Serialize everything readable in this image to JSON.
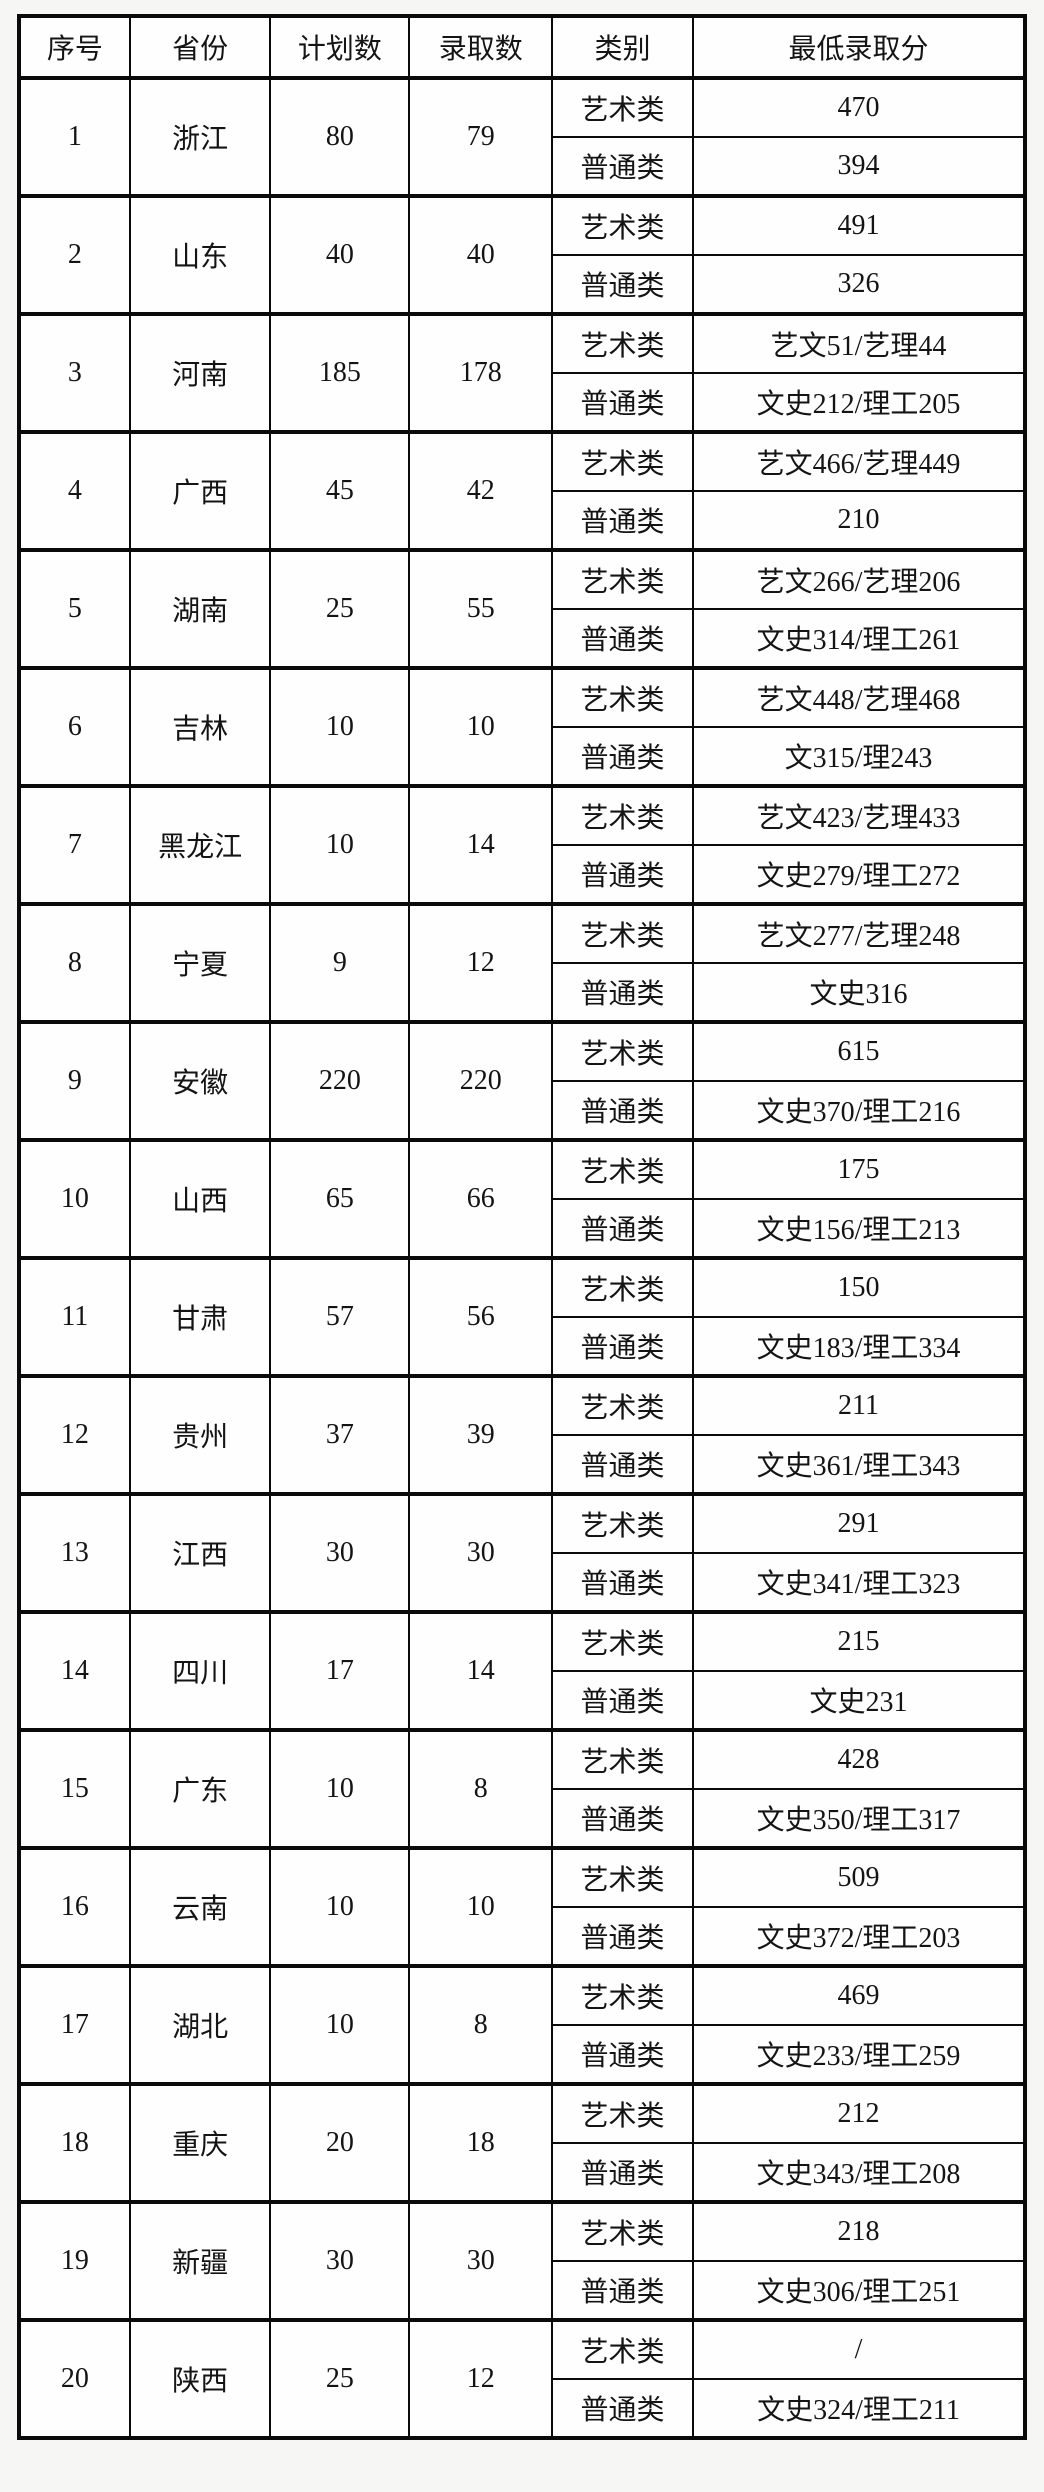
{
  "table": {
    "headers": {
      "serial": "序号",
      "province": "省份",
      "plan": "计划数",
      "admitted": "录取数",
      "category": "类别",
      "min_score": "最低录取分"
    },
    "category_labels": {
      "art": "艺术类",
      "regular": "普通类"
    },
    "rows": [
      {
        "no": "1",
        "province": "浙江",
        "plan": "80",
        "admitted": "79",
        "art_score": "470",
        "regular_score": "394"
      },
      {
        "no": "2",
        "province": "山东",
        "plan": "40",
        "admitted": "40",
        "art_score": "491",
        "regular_score": "326"
      },
      {
        "no": "3",
        "province": "河南",
        "plan": "185",
        "admitted": "178",
        "art_score": "艺文51/艺理44",
        "regular_score": "文史212/理工205"
      },
      {
        "no": "4",
        "province": "广西",
        "plan": "45",
        "admitted": "42",
        "art_score": "艺文466/艺理449",
        "regular_score": "210"
      },
      {
        "no": "5",
        "province": "湖南",
        "plan": "25",
        "admitted": "55",
        "art_score": "艺文266/艺理206",
        "regular_score": "文史314/理工261"
      },
      {
        "no": "6",
        "province": "吉林",
        "plan": "10",
        "admitted": "10",
        "art_score": "艺文448/艺理468",
        "regular_score": "文315/理243"
      },
      {
        "no": "7",
        "province": "黑龙江",
        "plan": "10",
        "admitted": "14",
        "art_score": "艺文423/艺理433",
        "regular_score": "文史279/理工272"
      },
      {
        "no": "8",
        "province": "宁夏",
        "plan": "9",
        "admitted": "12",
        "art_score": "艺文277/艺理248",
        "regular_score": "文史316"
      },
      {
        "no": "9",
        "province": "安徽",
        "plan": "220",
        "admitted": "220",
        "art_score": "615",
        "regular_score": "文史370/理工216"
      },
      {
        "no": "10",
        "province": "山西",
        "plan": "65",
        "admitted": "66",
        "art_score": "175",
        "regular_score": "文史156/理工213"
      },
      {
        "no": "11",
        "province": "甘肃",
        "plan": "57",
        "admitted": "56",
        "art_score": "150",
        "regular_score": "文史183/理工334"
      },
      {
        "no": "12",
        "province": "贵州",
        "plan": "37",
        "admitted": "39",
        "art_score": "211",
        "regular_score": "文史361/理工343"
      },
      {
        "no": "13",
        "province": "江西",
        "plan": "30",
        "admitted": "30",
        "art_score": "291",
        "regular_score": "文史341/理工323"
      },
      {
        "no": "14",
        "province": "四川",
        "plan": "17",
        "admitted": "14",
        "art_score": "215",
        "regular_score": "文史231"
      },
      {
        "no": "15",
        "province": "广东",
        "plan": "10",
        "admitted": "8",
        "art_score": "428",
        "regular_score": "文史350/理工317"
      },
      {
        "no": "16",
        "province": "云南",
        "plan": "10",
        "admitted": "10",
        "art_score": "509",
        "regular_score": "文史372/理工203"
      },
      {
        "no": "17",
        "province": "湖北",
        "plan": "10",
        "admitted": "8",
        "art_score": "469",
        "regular_score": "文史233/理工259"
      },
      {
        "no": "18",
        "province": "重庆",
        "plan": "20",
        "admitted": "18",
        "art_score": "212",
        "regular_score": "文史343/理工208"
      },
      {
        "no": "19",
        "province": "新疆",
        "plan": "30",
        "admitted": "30",
        "art_score": "218",
        "regular_score": "文史306/理工251"
      },
      {
        "no": "20",
        "province": "陕西",
        "plan": "25",
        "admitted": "12",
        "art_score": "/",
        "regular_score": "文史324/理工211"
      }
    ]
  }
}
